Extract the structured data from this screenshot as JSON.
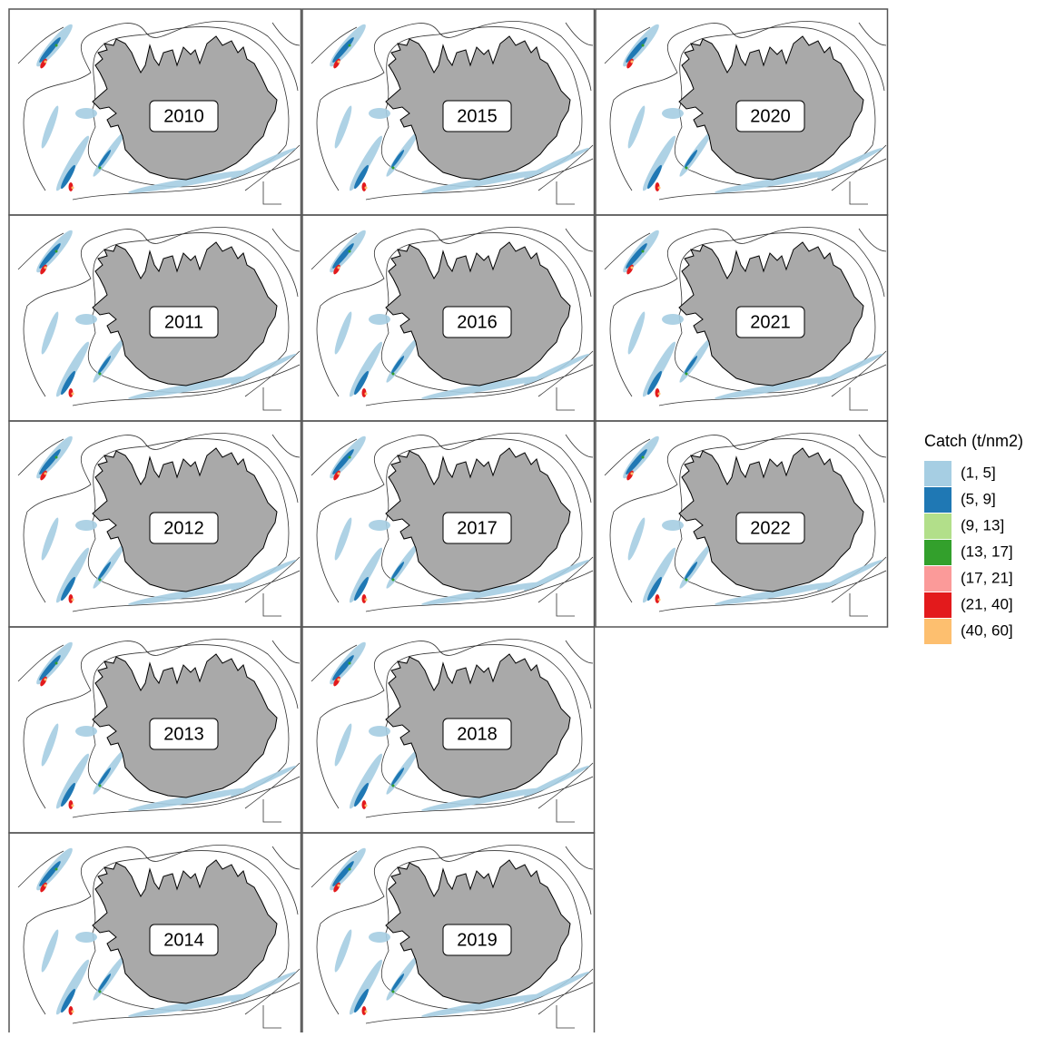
{
  "panels": [
    {
      "label": "2010"
    },
    {
      "label": "2011"
    },
    {
      "label": "2012"
    },
    {
      "label": "2013"
    },
    {
      "label": "2014"
    },
    {
      "label": "2015"
    },
    {
      "label": "2016"
    },
    {
      "label": "2017"
    },
    {
      "label": "2018"
    },
    {
      "label": "2019"
    },
    {
      "label": "2020"
    },
    {
      "label": "2021"
    },
    {
      "label": "2022"
    }
  ],
  "legend": {
    "title": "Catch (t/nm2)",
    "items": [
      {
        "label": "(1, 5]",
        "color": "#a6cee3"
      },
      {
        "label": "(5, 9]",
        "color": "#1f78b4"
      },
      {
        "label": "(9, 13]",
        "color": "#b2df8a"
      },
      {
        "label": "(13, 17]",
        "color": "#33a02c"
      },
      {
        "label": "(17, 21]",
        "color": "#fb9a99"
      },
      {
        "label": "(21, 40]",
        "color": "#e31a1c"
      },
      {
        "label": "(40, 60]",
        "color": "#fdbf6f"
      }
    ]
  }
}
